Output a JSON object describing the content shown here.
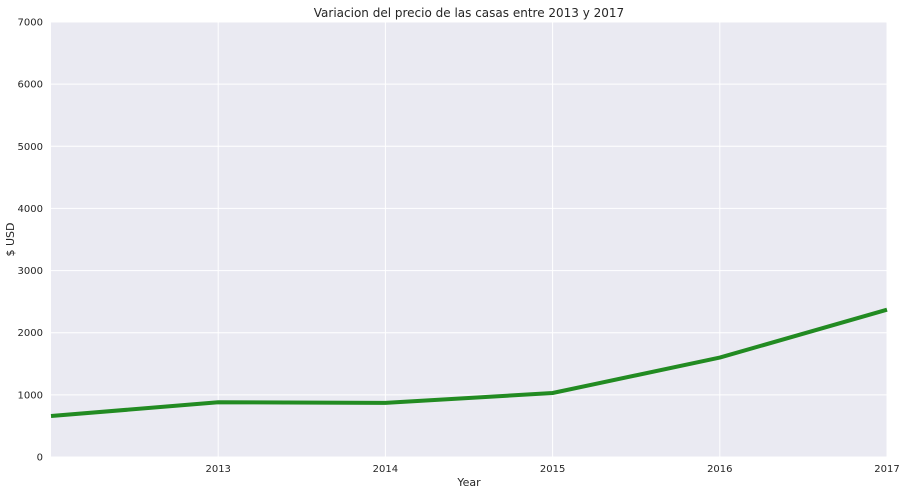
{
  "chart_data": {
    "type": "line",
    "title": "Variacion del precio de las casas entre 2013 y 2017",
    "xlabel": "Year",
    "ylabel": "$ USD",
    "xlim": [
      2012,
      2017
    ],
    "ylim": [
      0,
      7000
    ],
    "x_ticks": [
      "2013",
      "2014",
      "2015",
      "2016",
      "2017"
    ],
    "y_ticks": [
      "0",
      "1000",
      "2000",
      "3000",
      "4000",
      "5000",
      "6000",
      "7000"
    ],
    "grid": true,
    "background_color": "#eaeaf2",
    "series": [
      {
        "color": "#228b22",
        "x": [
          2012,
          2013,
          2014,
          2015,
          2016,
          2017
        ],
        "y": [
          660,
          880,
          870,
          1030,
          1600,
          2370
        ]
      }
    ]
  }
}
